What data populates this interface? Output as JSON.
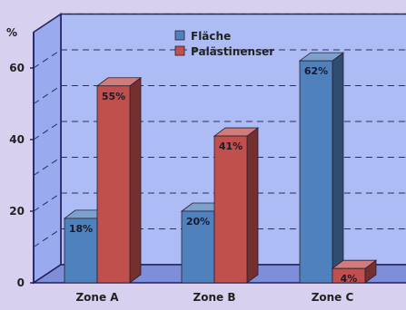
{
  "chart_data": {
    "type": "bar",
    "categories": [
      "Zone A",
      "Zone B",
      "Zone C"
    ],
    "series": [
      {
        "name": "Fläche",
        "color": "#4f81bd",
        "values": [
          18,
          20,
          62
        ],
        "labels": [
          "18%",
          "20%",
          "62%"
        ]
      },
      {
        "name": "Palästinenser",
        "color": "#c0504d",
        "values": [
          55,
          41,
          4
        ],
        "labels": [
          "55%",
          "41%",
          "4%"
        ]
      }
    ],
    "y_unit_label": "%",
    "y_ticks": [
      "0",
      "20",
      "40",
      "60"
    ],
    "ylim": [
      0,
      70
    ],
    "grid": "dashed horizontal",
    "legend": "top-center",
    "style": "3d"
  }
}
